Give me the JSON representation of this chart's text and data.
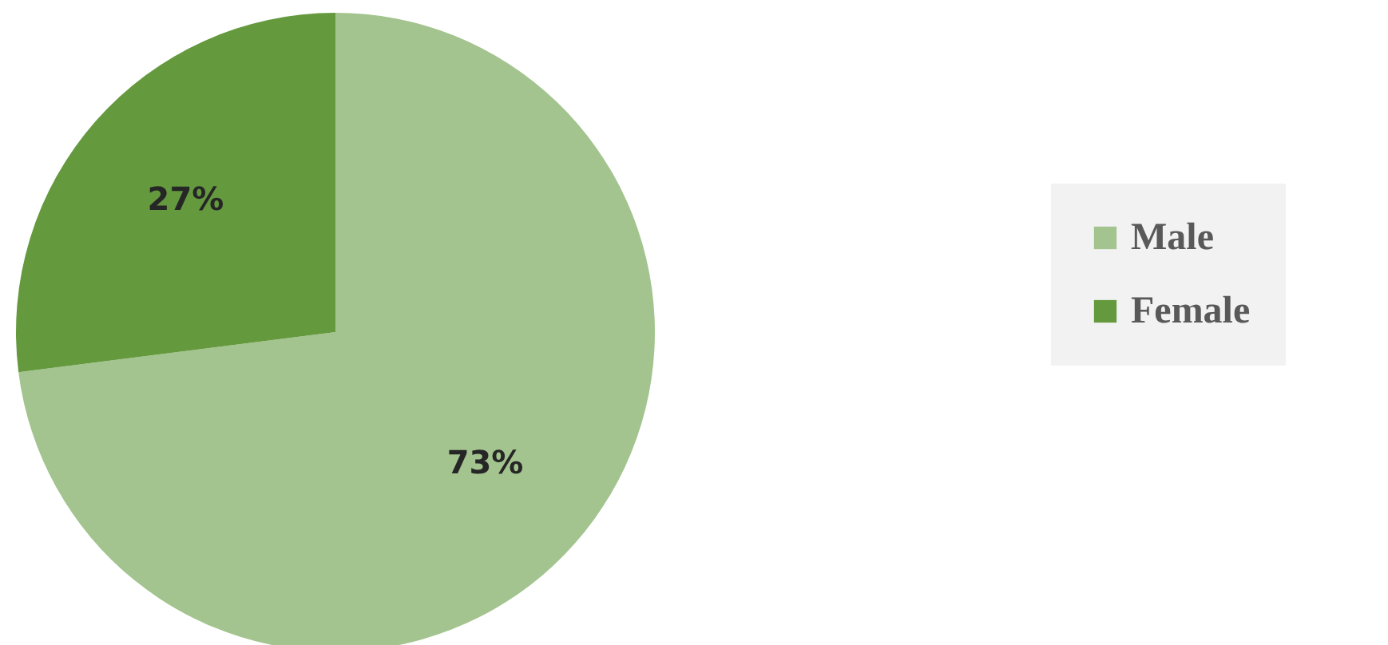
{
  "chart_data": {
    "type": "pie",
    "categories": [
      "Male",
      "Female"
    ],
    "values": [
      73,
      27
    ],
    "colors": [
      "#a3c48e",
      "#64993e"
    ],
    "value_labels": [
      "73%",
      "27%"
    ],
    "legend": "right"
  }
}
